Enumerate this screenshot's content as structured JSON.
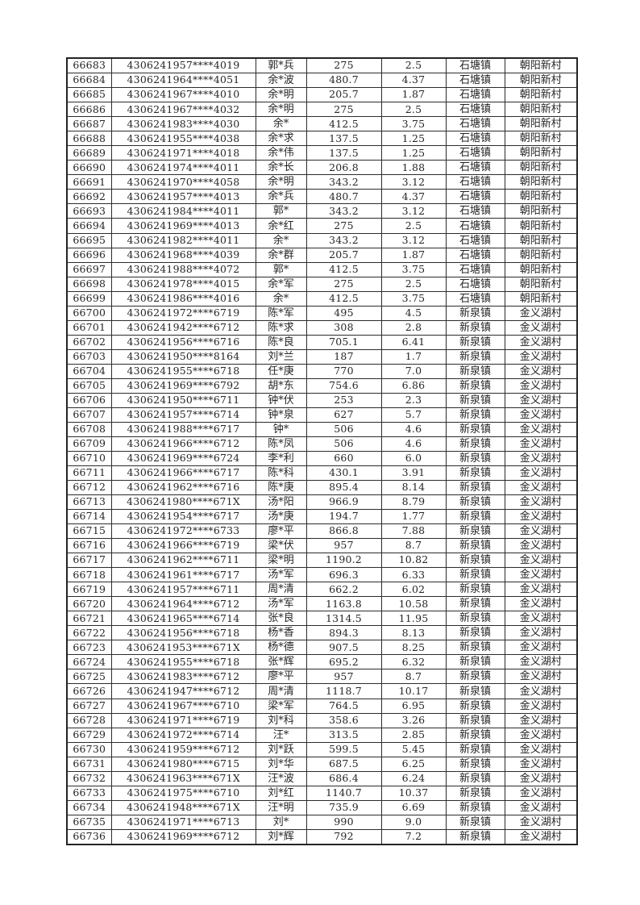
{
  "colors": {
    "page_background": "#ffffff",
    "border": "#2c2c2c",
    "text": "#262626"
  },
  "table": {
    "rows": [
      [
        "66683",
        "4306241957****4019",
        "郭*兵",
        "275",
        "2.5",
        "石塘镇",
        "朝阳新村"
      ],
      [
        "66684",
        "4306241964****4051",
        "余*波",
        "480.7",
        "4.37",
        "石塘镇",
        "朝阳新村"
      ],
      [
        "66685",
        "4306241967****4010",
        "余*明",
        "205.7",
        "1.87",
        "石塘镇",
        "朝阳新村"
      ],
      [
        "66686",
        "4306241967****4032",
        "余*明",
        "275",
        "2.5",
        "石塘镇",
        "朝阳新村"
      ],
      [
        "66687",
        "4306241983****4030",
        "余*",
        "412.5",
        "3.75",
        "石塘镇",
        "朝阳新村"
      ],
      [
        "66688",
        "4306241955****4038",
        "余*求",
        "137.5",
        "1.25",
        "石塘镇",
        "朝阳新村"
      ],
      [
        "66689",
        "4306241971****4018",
        "余*伟",
        "137.5",
        "1.25",
        "石塘镇",
        "朝阳新村"
      ],
      [
        "66690",
        "4306241974****4011",
        "余*长",
        "206.8",
        "1.88",
        "石塘镇",
        "朝阳新村"
      ],
      [
        "66691",
        "4306241970****4058",
        "余*明",
        "343.2",
        "3.12",
        "石塘镇",
        "朝阳新村"
      ],
      [
        "66692",
        "4306241957****4013",
        "余*兵",
        "480.7",
        "4.37",
        "石塘镇",
        "朝阳新村"
      ],
      [
        "66693",
        "4306241984****4011",
        "郭*",
        "343.2",
        "3.12",
        "石塘镇",
        "朝阳新村"
      ],
      [
        "66694",
        "4306241969****4013",
        "余*红",
        "275",
        "2.5",
        "石塘镇",
        "朝阳新村"
      ],
      [
        "66695",
        "4306241982****4011",
        "余*",
        "343.2",
        "3.12",
        "石塘镇",
        "朝阳新村"
      ],
      [
        "66696",
        "4306241968****4039",
        "余*群",
        "205.7",
        "1.87",
        "石塘镇",
        "朝阳新村"
      ],
      [
        "66697",
        "4306241988****4072",
        "郭*",
        "412.5",
        "3.75",
        "石塘镇",
        "朝阳新村"
      ],
      [
        "66698",
        "4306241978****4015",
        "余*军",
        "275",
        "2.5",
        "石塘镇",
        "朝阳新村"
      ],
      [
        "66699",
        "4306241986****4016",
        "余*",
        "412.5",
        "3.75",
        "石塘镇",
        "朝阳新村"
      ],
      [
        "66700",
        "4306241972****6719",
        "陈*军",
        "495",
        "4.5",
        "新泉镇",
        "金义湖村"
      ],
      [
        "66701",
        "4306241942****6712",
        "陈*求",
        "308",
        "2.8",
        "新泉镇",
        "金义湖村"
      ],
      [
        "66702",
        "4306241956****6716",
        "陈*良",
        "705.1",
        "6.41",
        "新泉镇",
        "金义湖村"
      ],
      [
        "66703",
        "4306241950****8164",
        "刘*兰",
        "187",
        "1.7",
        "新泉镇",
        "金义湖村"
      ],
      [
        "66704",
        "4306241955****6718",
        "任*庚",
        "770",
        "7.0",
        "新泉镇",
        "金义湖村"
      ],
      [
        "66705",
        "4306241969****6792",
        "胡*东",
        "754.6",
        "6.86",
        "新泉镇",
        "金义湖村"
      ],
      [
        "66706",
        "4306241950****6711",
        "钟*伏",
        "253",
        "2.3",
        "新泉镇",
        "金义湖村"
      ],
      [
        "66707",
        "4306241957****6714",
        "钟*泉",
        "627",
        "5.7",
        "新泉镇",
        "金义湖村"
      ],
      [
        "66708",
        "4306241988****6717",
        "钟*",
        "506",
        "4.6",
        "新泉镇",
        "金义湖村"
      ],
      [
        "66709",
        "4306241966****6712",
        "陈*凤",
        "506",
        "4.6",
        "新泉镇",
        "金义湖村"
      ],
      [
        "66710",
        "4306241969****6724",
        "李*利",
        "660",
        "6.0",
        "新泉镇",
        "金义湖村"
      ],
      [
        "66711",
        "4306241966****6717",
        "陈*科",
        "430.1",
        "3.91",
        "新泉镇",
        "金义湖村"
      ],
      [
        "66712",
        "4306241962****6716",
        "陈*庚",
        "895.4",
        "8.14",
        "新泉镇",
        "金义湖村"
      ],
      [
        "66713",
        "4306241980****671X",
        "汤*阳",
        "966.9",
        "8.79",
        "新泉镇",
        "金义湖村"
      ],
      [
        "66714",
        "4306241954****6717",
        "汤*庚",
        "194.7",
        "1.77",
        "新泉镇",
        "金义湖村"
      ],
      [
        "66715",
        "4306241972****6733",
        "廖*平",
        "866.8",
        "7.88",
        "新泉镇",
        "金义湖村"
      ],
      [
        "66716",
        "4306241966****6719",
        "梁*伏",
        "957",
        "8.7",
        "新泉镇",
        "金义湖村"
      ],
      [
        "66717",
        "4306241962****6711",
        "梁*明",
        "1190.2",
        "10.82",
        "新泉镇",
        "金义湖村"
      ],
      [
        "66718",
        "4306241961****6717",
        "汤*军",
        "696.3",
        "6.33",
        "新泉镇",
        "金义湖村"
      ],
      [
        "66719",
        "4306241957****6711",
        "周*清",
        "662.2",
        "6.02",
        "新泉镇",
        "金义湖村"
      ],
      [
        "66720",
        "4306241964****6712",
        "汤*军",
        "1163.8",
        "10.58",
        "新泉镇",
        "金义湖村"
      ],
      [
        "66721",
        "4306241965****6714",
        "张*良",
        "1314.5",
        "11.95",
        "新泉镇",
        "金义湖村"
      ],
      [
        "66722",
        "4306241956****6718",
        "杨*香",
        "894.3",
        "8.13",
        "新泉镇",
        "金义湖村"
      ],
      [
        "66723",
        "4306241953****671X",
        "杨*德",
        "907.5",
        "8.25",
        "新泉镇",
        "金义湖村"
      ],
      [
        "66724",
        "4306241955****6718",
        "张*辉",
        "695.2",
        "6.32",
        "新泉镇",
        "金义湖村"
      ],
      [
        "66725",
        "4306241983****6712",
        "廖*平",
        "957",
        "8.7",
        "新泉镇",
        "金义湖村"
      ],
      [
        "66726",
        "4306241947****6712",
        "周*清",
        "1118.7",
        "10.17",
        "新泉镇",
        "金义湖村"
      ],
      [
        "66727",
        "4306241967****6710",
        "梁*军",
        "764.5",
        "6.95",
        "新泉镇",
        "金义湖村"
      ],
      [
        "66728",
        "4306241971****6719",
        "刘*科",
        "358.6",
        "3.26",
        "新泉镇",
        "金义湖村"
      ],
      [
        "66729",
        "4306241972****6714",
        "汪*",
        "313.5",
        "2.85",
        "新泉镇",
        "金义湖村"
      ],
      [
        "66730",
        "4306241959****6712",
        "刘*跃",
        "599.5",
        "5.45",
        "新泉镇",
        "金义湖村"
      ],
      [
        "66731",
        "4306241980****6715",
        "刘*华",
        "687.5",
        "6.25",
        "新泉镇",
        "金义湖村"
      ],
      [
        "66732",
        "4306241963****671X",
        "汪*波",
        "686.4",
        "6.24",
        "新泉镇",
        "金义湖村"
      ],
      [
        "66733",
        "4306241975****6710",
        "刘*红",
        "1140.7",
        "10.37",
        "新泉镇",
        "金义湖村"
      ],
      [
        "66734",
        "4306241948****671X",
        "汪*明",
        "735.9",
        "6.69",
        "新泉镇",
        "金义湖村"
      ],
      [
        "66735",
        "4306241971****6713",
        "刘*",
        "990",
        "9.0",
        "新泉镇",
        "金义湖村"
      ],
      [
        "66736",
        "4306241969****6712",
        "刘*辉",
        "792",
        "7.2",
        "新泉镇",
        "金义湖村"
      ]
    ]
  }
}
